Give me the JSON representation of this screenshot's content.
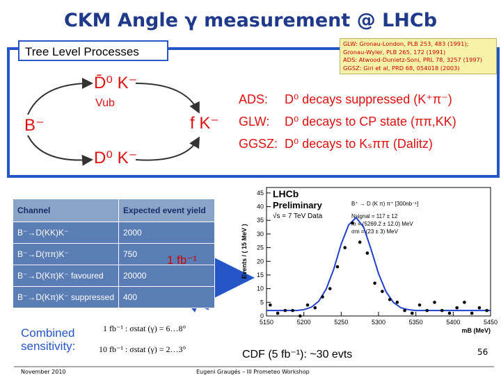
{
  "title": "CKM Angle γ measurement @ LHCb",
  "processes": {
    "heading": "Tree Level Processes",
    "references": [
      "GLW: Gronau-London, PLB 253, 483 (1991);",
      "Gronau-Wyler, PLB 265, 172 (1991)",
      "ADS: Atwood-Dunietz-Soni, PRL 78, 3257 (1997)",
      "GGSZ: Giri et al, PRD 68, 054018 (2003)"
    ],
    "diagram": {
      "initial": "B⁻",
      "upper": "D̄⁰ K⁻",
      "vub": "Vub",
      "lower": "D⁰ K⁻",
      "final": "f K⁻"
    },
    "methods": [
      {
        "label": "ADS:",
        "text": "D⁰ decays suppressed (K⁺π⁻)"
      },
      {
        "label": "GLW:",
        "text": "D⁰ decays to CP state (ππ,KK)"
      },
      {
        "label": "GGSZ:",
        "text": "D⁰ decays to Kₛππ (Dalitz)"
      }
    ]
  },
  "table": {
    "header": [
      "Channel",
      "Expected event yield"
    ],
    "rows": [
      [
        "B⁻→D(KK)K⁻",
        2000
      ],
      [
        "B⁻→D(ππ)K⁻",
        750
      ],
      [
        "B⁻→D(Kπ)K⁻ favoured",
        20000
      ],
      [
        "B⁻→D(Kπ)K⁻ suppressed",
        400
      ]
    ]
  },
  "luminosity": "1 fb⁻¹",
  "sensitivity": {
    "label": "Combined sensitivity:",
    "lines": [
      "1 fb⁻¹ : σstat (γ) = 6…8°",
      "10 fb⁻¹ : σstat (γ) = 2…3°"
    ]
  },
  "plot": {
    "texts": [
      "LHCb",
      "Preliminary",
      "√s = 7 TeV Data",
      "B⁺ → D (K π) π⁺ [300nb⁻¹]",
      "Nsignal = 117 ± 12",
      "m = (5269.2 ± 12.0) MeV",
      "σm = (23 ± 3) MeV"
    ],
    "ylabel": "Events / ( 15 MeV )",
    "xlabel": "mB (MeV)",
    "xlim": [
      5150,
      5450
    ],
    "ylim": [
      0,
      47
    ],
    "xticks": [
      5150,
      5200,
      5250,
      5300,
      5350,
      5400,
      5450
    ],
    "yticks": [
      0,
      5,
      10,
      15,
      20,
      25,
      30,
      35,
      40,
      45
    ],
    "points": {
      "x": [
        5155,
        5165,
        5175,
        5185,
        5195,
        5205,
        5215,
        5225,
        5235,
        5245,
        5255,
        5265,
        5275,
        5285,
        5295,
        5305,
        5315,
        5325,
        5335,
        5345,
        5355,
        5365,
        5375,
        5385,
        5395,
        5405,
        5415,
        5425,
        5435,
        5445
      ],
      "values": [
        4,
        1,
        2,
        2,
        0,
        4,
        3,
        7,
        10,
        18,
        25,
        34,
        27,
        23,
        12,
        9,
        6,
        5,
        2,
        1,
        4,
        2,
        5,
        2,
        1,
        3,
        5,
        1,
        3,
        2
      ]
    },
    "fit": {
      "x": [
        5150,
        5160,
        5170,
        5180,
        5190,
        5200,
        5210,
        5220,
        5230,
        5240,
        5250,
        5260,
        5270,
        5280,
        5290,
        5300,
        5310,
        5320,
        5330,
        5340,
        5350,
        5360,
        5370,
        5380,
        5390,
        5400,
        5410,
        5420,
        5430,
        5440,
        5450
      ],
      "values": [
        2,
        2,
        2,
        2,
        2,
        2.3,
        3.2,
        5.4,
        9.9,
        17.1,
        26.3,
        33.3,
        36,
        32.5,
        24.4,
        15.5,
        8.9,
        4.9,
        3,
        2.3,
        2,
        2,
        2,
        2,
        2,
        2,
        2,
        2,
        2,
        2,
        2
      ]
    }
  },
  "cdf": "CDF (5 fb⁻¹): ~30 evts",
  "page_number": "56",
  "footer": {
    "date": "November 2010",
    "author": "Eugeni Graugés – III Prometeo Workshop"
  }
}
